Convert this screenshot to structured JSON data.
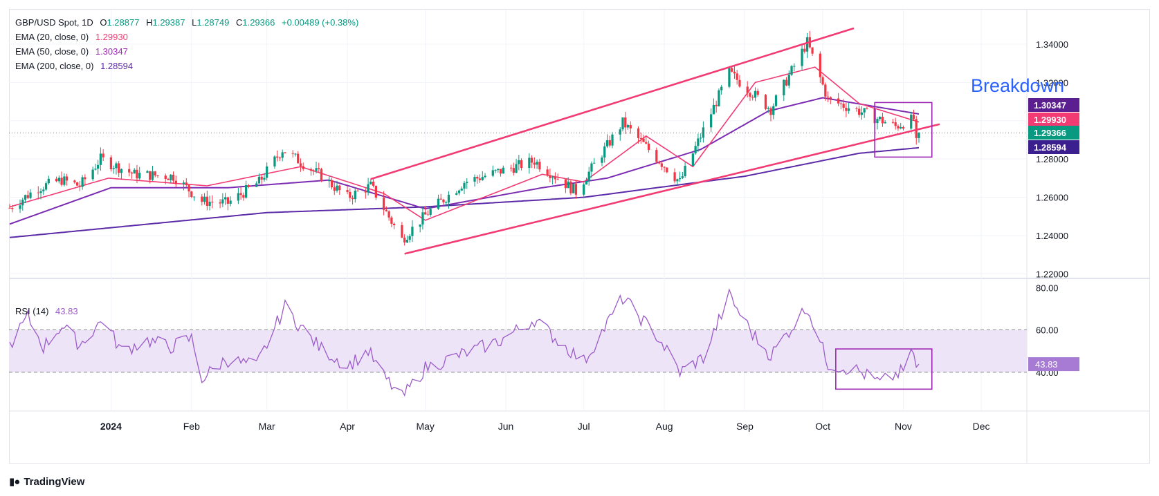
{
  "header": {
    "symbol": "GBP/USD Spot, 1D",
    "ohlc": {
      "o_label": "O",
      "o": "1.28877",
      "h_label": "H",
      "h": "1.29387",
      "l_label": "L",
      "l": "1.28749",
      "c_label": "C",
      "c": "1.29366",
      "change": "+0.00489 (+0.38%)"
    },
    "ema": [
      {
        "label": "EMA (20, close, 0)",
        "value": "1.29930",
        "color": "#f23a73"
      },
      {
        "label": "EMA (50, close, 0)",
        "value": "1.30347",
        "color": "#9c27b0"
      },
      {
        "label": "EMA (200, close, 0)",
        "value": "1.28594",
        "color": "#5b2aa8"
      }
    ],
    "rsi": {
      "label": "RSI (14)",
      "value": "43.83",
      "color": "#9c5bc9"
    }
  },
  "annotation": {
    "breakdown": "Breakdown",
    "breakdown_color": "#2962ff"
  },
  "brand": "TradingView",
  "colors": {
    "up": "#089981",
    "down": "#f23645",
    "channel": "#f23a73",
    "box": "#9c27b0",
    "rsi_band": "#ede4f7",
    "grid": "#f0f3fa"
  },
  "chart_data": [
    {
      "type": "candlestick",
      "title": "GBP/USD Spot, 1D",
      "x_start": "2023-11-23",
      "x_end": "2024-11-07",
      "xaxis_ticks": [
        "2024",
        "Feb",
        "Mar",
        "Apr",
        "May",
        "Jun",
        "Jul",
        "Aug",
        "Sep",
        "Oct",
        "Nov",
        "Dec"
      ],
      "yaxis_ticks": [
        "1.34000",
        "1.32000",
        "1.30000",
        "1.28000",
        "1.26000",
        "1.24000",
        "1.22000"
      ],
      "ylim": [
        1.218,
        1.358
      ],
      "price_labels": [
        {
          "value": "1.30347",
          "color": "#5b1f8f"
        },
        {
          "value": "1.29930",
          "color": "#f23a73"
        },
        {
          "value": "1.29366",
          "color": "#089981"
        },
        {
          "value": "1.28594",
          "color": "#3b1f8f"
        }
      ],
      "close_anchors": [
        [
          "2023-11-23",
          1.2545
        ],
        [
          "2023-12-04",
          1.265
        ],
        [
          "2023-12-13",
          1.269
        ],
        [
          "2023-12-20",
          1.266
        ],
        [
          "2023-12-28",
          1.28
        ],
        [
          "2024-01-10",
          1.272
        ],
        [
          "2024-01-25",
          1.271
        ],
        [
          "2024-02-05",
          1.258
        ],
        [
          "2024-02-15",
          1.257
        ],
        [
          "2024-02-27",
          1.268
        ],
        [
          "2024-03-07",
          1.285
        ],
        [
          "2024-03-21",
          1.272
        ],
        [
          "2024-04-01",
          1.26
        ],
        [
          "2024-04-10",
          1.266
        ],
        [
          "2024-04-22",
          1.238
        ],
        [
          "2024-05-02",
          1.252
        ],
        [
          "2024-05-16",
          1.268
        ],
        [
          "2024-06-12",
          1.279
        ],
        [
          "2024-06-28",
          1.263
        ],
        [
          "2024-07-16",
          1.299
        ],
        [
          "2024-08-07",
          1.268
        ],
        [
          "2024-08-26",
          1.325
        ],
        [
          "2024-09-11",
          1.306
        ],
        [
          "2024-09-25",
          1.341
        ],
        [
          "2024-10-03",
          1.311
        ],
        [
          "2024-10-17",
          1.304
        ],
        [
          "2024-10-29",
          1.297
        ],
        [
          "2024-11-05",
          1.301
        ],
        [
          "2024-11-06",
          1.288
        ],
        [
          "2024-11-07",
          1.2937
        ]
      ],
      "ema20_anchors": [
        [
          "2023-11-23",
          1.255
        ],
        [
          "2023-12-31",
          1.27
        ],
        [
          "2024-02-07",
          1.266
        ],
        [
          "2024-03-14",
          1.276
        ],
        [
          "2024-04-15",
          1.262
        ],
        [
          "2024-05-01",
          1.248
        ],
        [
          "2024-06-15",
          1.272
        ],
        [
          "2024-07-01",
          1.268
        ],
        [
          "2024-07-25",
          1.292
        ],
        [
          "2024-08-12",
          1.276
        ],
        [
          "2024-09-05",
          1.32
        ],
        [
          "2024-09-28",
          1.328
        ],
        [
          "2024-10-15",
          1.309
        ],
        [
          "2024-11-07",
          1.2993
        ]
      ],
      "ema50_anchors": [
        [
          "2023-11-23",
          1.246
        ],
        [
          "2024-01-01",
          1.265
        ],
        [
          "2024-02-15",
          1.265
        ],
        [
          "2024-03-25",
          1.269
        ],
        [
          "2024-05-01",
          1.254
        ],
        [
          "2024-06-15",
          1.265
        ],
        [
          "2024-07-10",
          1.27
        ],
        [
          "2024-08-15",
          1.285
        ],
        [
          "2024-09-10",
          1.305
        ],
        [
          "2024-10-01",
          1.312
        ],
        [
          "2024-11-07",
          1.3035
        ]
      ],
      "ema200_anchors": [
        [
          "2023-11-23",
          1.239
        ],
        [
          "2024-03-01",
          1.252
        ],
        [
          "2024-05-01",
          1.255
        ],
        [
          "2024-07-01",
          1.26
        ],
        [
          "2024-09-01",
          1.271
        ],
        [
          "2024-10-15",
          1.283
        ],
        [
          "2024-11-07",
          1.2859
        ]
      ],
      "channel": {
        "upper": [
          [
            "2024-04-10",
            1.2695
          ],
          [
            "2024-10-13",
            1.3483
          ]
        ],
        "lower": [
          [
            "2024-04-23",
            1.2305
          ],
          [
            "2024-11-15",
            1.2982
          ]
        ]
      },
      "box": {
        "x0": "2024-10-21",
        "x1": "2024-11-12",
        "y0": 1.281,
        "y1": 1.3095
      }
    },
    {
      "type": "line",
      "title": "RSI (14)",
      "ylim": [
        22,
        84
      ],
      "yaxis_ticks": [
        "80.00",
        "60.00",
        "40.00"
      ],
      "band": [
        40,
        60
      ],
      "last_value": "43.83",
      "rsi_anchors": [
        [
          "2023-11-23",
          53
        ],
        [
          "2023-11-30",
          66
        ],
        [
          "2023-12-06",
          52
        ],
        [
          "2023-12-13",
          62
        ],
        [
          "2023-12-20",
          53
        ],
        [
          "2023-12-29",
          65
        ],
        [
          "2024-01-05",
          50
        ],
        [
          "2024-01-15",
          55
        ],
        [
          "2024-01-24",
          52
        ],
        [
          "2024-02-01",
          56
        ],
        [
          "2024-02-05",
          37
        ],
        [
          "2024-02-14",
          46
        ],
        [
          "2024-02-26",
          43
        ],
        [
          "2024-03-08",
          71
        ],
        [
          "2024-03-13",
          63
        ],
        [
          "2024-03-21",
          52
        ],
        [
          "2024-03-26",
          48
        ],
        [
          "2024-04-01",
          43
        ],
        [
          "2024-04-09",
          50
        ],
        [
          "2024-04-15",
          38
        ],
        [
          "2024-04-22",
          28
        ],
        [
          "2024-05-01",
          42
        ],
        [
          "2024-05-14",
          48
        ],
        [
          "2024-05-30",
          55
        ],
        [
          "2024-06-12",
          65
        ],
        [
          "2024-06-21",
          55
        ],
        [
          "2024-07-01",
          45
        ],
        [
          "2024-07-16",
          75
        ],
        [
          "2024-07-30",
          56
        ],
        [
          "2024-08-07",
          40
        ],
        [
          "2024-08-16",
          47
        ],
        [
          "2024-08-26",
          76
        ],
        [
          "2024-09-04",
          58
        ],
        [
          "2024-09-11",
          48
        ],
        [
          "2024-09-25",
          71
        ],
        [
          "2024-10-03",
          44
        ],
        [
          "2024-10-14",
          41
        ],
        [
          "2024-10-23",
          35
        ],
        [
          "2024-10-31",
          40
        ],
        [
          "2024-11-01",
          41
        ],
        [
          "2024-11-05",
          50
        ],
        [
          "2024-11-06",
          41
        ],
        [
          "2024-11-07",
          43.83
        ]
      ],
      "box": {
        "x0": "2024-10-06",
        "x1": "2024-11-12",
        "y0": 32,
        "y1": 51
      }
    }
  ]
}
